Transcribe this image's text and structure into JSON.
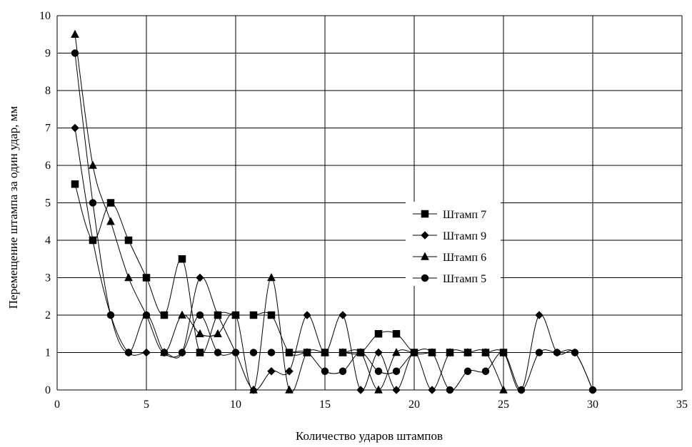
{
  "chart_data": {
    "type": "line",
    "xlabel": "Количество ударов штампов",
    "ylabel": "Перемещение штампа за один удар, мм",
    "xlim": [
      0,
      35
    ],
    "ylim": [
      0,
      10
    ],
    "xticks": [
      0,
      5,
      10,
      15,
      20,
      25,
      30,
      35
    ],
    "yticks": [
      0,
      1,
      2,
      3,
      4,
      5,
      6,
      7,
      8,
      9,
      10
    ],
    "grid": true,
    "legend_position": "center-right",
    "series": [
      {
        "name": "Штамп 7",
        "marker": "square",
        "points": [
          [
            1,
            5.5
          ],
          [
            2,
            4
          ],
          [
            3,
            5
          ],
          [
            4,
            4
          ],
          [
            5,
            3
          ],
          [
            6,
            2
          ],
          [
            7,
            3.5
          ],
          [
            8,
            1
          ],
          [
            9,
            2
          ],
          [
            10,
            2
          ],
          [
            11,
            2
          ],
          [
            12,
            2
          ],
          [
            13,
            1
          ],
          [
            14,
            1
          ],
          [
            15,
            1
          ],
          [
            16,
            1
          ],
          [
            17,
            1
          ],
          [
            18,
            1.5
          ],
          [
            19,
            1.5
          ],
          [
            20,
            1
          ],
          [
            21,
            1
          ],
          [
            22,
            1
          ],
          [
            23,
            1
          ],
          [
            24,
            1
          ],
          [
            25,
            1
          ]
        ]
      },
      {
        "name": "Штамп 9",
        "marker": "diamond",
        "points": [
          [
            1,
            7
          ],
          [
            2,
            4
          ],
          [
            3,
            2
          ],
          [
            4,
            1
          ],
          [
            5,
            1
          ],
          [
            6,
            1
          ],
          [
            7,
            1
          ],
          [
            8,
            3
          ],
          [
            9,
            2
          ],
          [
            10,
            1
          ],
          [
            11,
            0
          ],
          [
            12,
            0.5
          ],
          [
            13,
            0.5
          ],
          [
            14,
            2
          ],
          [
            15,
            1
          ],
          [
            16,
            2
          ],
          [
            17,
            0
          ],
          [
            18,
            1
          ],
          [
            19,
            0
          ],
          [
            20,
            1
          ],
          [
            21,
            0
          ],
          [
            22,
            1
          ],
          [
            23,
            1
          ],
          [
            24,
            1
          ],
          [
            25,
            1
          ],
          [
            26,
            0
          ],
          [
            27,
            2
          ],
          [
            28,
            1
          ],
          [
            29,
            1
          ],
          [
            30,
            0
          ]
        ]
      },
      {
        "name": "Штамп 6",
        "marker": "triangle",
        "points": [
          [
            1,
            9.5
          ],
          [
            2,
            6
          ],
          [
            3,
            4.5
          ],
          [
            4,
            3
          ],
          [
            5,
            2
          ],
          [
            6,
            1
          ],
          [
            7,
            2
          ],
          [
            8,
            1.5
          ],
          [
            9,
            1.5
          ],
          [
            10,
            2
          ],
          [
            11,
            0
          ],
          [
            12,
            3
          ],
          [
            13,
            0
          ],
          [
            14,
            1
          ],
          [
            15,
            1
          ],
          [
            16,
            1
          ],
          [
            17,
            1
          ],
          [
            18,
            0
          ],
          [
            19,
            1
          ],
          [
            20,
            1
          ],
          [
            21,
            1
          ],
          [
            22,
            1
          ],
          [
            23,
            1
          ],
          [
            24,
            1
          ],
          [
            25,
            0
          ]
        ]
      },
      {
        "name": "Штамп 5",
        "marker": "circle",
        "points": [
          [
            1,
            9
          ],
          [
            2,
            5
          ],
          [
            3,
            2
          ],
          [
            4,
            1
          ],
          [
            5,
            2
          ],
          [
            6,
            1
          ],
          [
            7,
            1
          ],
          [
            8,
            2
          ],
          [
            9,
            1
          ],
          [
            10,
            1
          ],
          [
            11,
            1
          ],
          [
            12,
            1
          ],
          [
            13,
            1
          ],
          [
            14,
            1
          ],
          [
            15,
            0.5
          ],
          [
            16,
            0.5
          ],
          [
            17,
            1
          ],
          [
            18,
            0.5
          ],
          [
            19,
            0.5
          ],
          [
            20,
            1
          ],
          [
            21,
            1
          ],
          [
            22,
            0
          ],
          [
            23,
            0.5
          ],
          [
            24,
            0.5
          ],
          [
            25,
            1
          ],
          [
            26,
            0
          ],
          [
            27,
            1
          ],
          [
            28,
            1
          ],
          [
            29,
            1
          ],
          [
            30,
            0
          ]
        ]
      }
    ]
  }
}
